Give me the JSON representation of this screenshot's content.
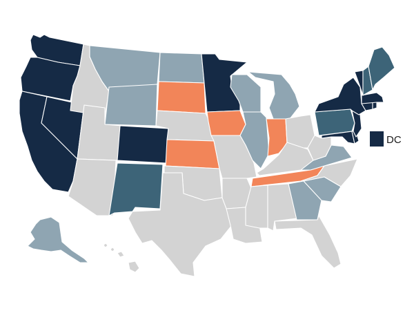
{
  "map": {
    "type": "us-state-choropleth",
    "colors": {
      "dark-navy": "#152a45",
      "teal": "#3d6478",
      "light-steel": "#8fa5b2",
      "orange": "#f28559",
      "light-gray": "#d3d3d3"
    },
    "dc_label": "DC",
    "dc_color": "dark-navy",
    "states": [
      {
        "code": "WA",
        "color": "dark-navy"
      },
      {
        "code": "OR",
        "color": "dark-navy"
      },
      {
        "code": "CA",
        "color": "dark-navy"
      },
      {
        "code": "NV",
        "color": "dark-navy"
      },
      {
        "code": "ID",
        "color": "light-gray"
      },
      {
        "code": "MT",
        "color": "light-steel"
      },
      {
        "code": "WY",
        "color": "light-steel"
      },
      {
        "code": "UT",
        "color": "light-gray"
      },
      {
        "code": "AZ",
        "color": "light-gray"
      },
      {
        "code": "CO",
        "color": "dark-navy"
      },
      {
        "code": "NM",
        "color": "teal"
      },
      {
        "code": "ND",
        "color": "light-steel"
      },
      {
        "code": "SD",
        "color": "orange"
      },
      {
        "code": "NE",
        "color": "light-gray"
      },
      {
        "code": "KS",
        "color": "orange"
      },
      {
        "code": "OK",
        "color": "light-gray"
      },
      {
        "code": "TX",
        "color": "light-gray"
      },
      {
        "code": "MN",
        "color": "dark-navy"
      },
      {
        "code": "IA",
        "color": "orange"
      },
      {
        "code": "MO",
        "color": "light-gray"
      },
      {
        "code": "AR",
        "color": "light-gray"
      },
      {
        "code": "LA",
        "color": "light-gray"
      },
      {
        "code": "WI",
        "color": "light-steel"
      },
      {
        "code": "IL",
        "color": "light-steel"
      },
      {
        "code": "MI",
        "color": "light-steel"
      },
      {
        "code": "IN",
        "color": "orange"
      },
      {
        "code": "OH",
        "color": "light-gray"
      },
      {
        "code": "KY",
        "color": "light-gray"
      },
      {
        "code": "TN",
        "color": "orange"
      },
      {
        "code": "MS",
        "color": "light-gray"
      },
      {
        "code": "AL",
        "color": "light-gray"
      },
      {
        "code": "GA",
        "color": "light-steel"
      },
      {
        "code": "FL",
        "color": "light-gray"
      },
      {
        "code": "SC",
        "color": "light-steel"
      },
      {
        "code": "NC",
        "color": "light-gray"
      },
      {
        "code": "VA",
        "color": "light-steel"
      },
      {
        "code": "WV",
        "color": "light-gray"
      },
      {
        "code": "MD",
        "color": "dark-navy"
      },
      {
        "code": "DE",
        "color": "dark-navy"
      },
      {
        "code": "PA",
        "color": "teal"
      },
      {
        "code": "NJ",
        "color": "dark-navy"
      },
      {
        "code": "NY",
        "color": "dark-navy"
      },
      {
        "code": "CT",
        "color": "dark-navy"
      },
      {
        "code": "RI",
        "color": "dark-navy"
      },
      {
        "code": "MA",
        "color": "dark-navy"
      },
      {
        "code": "VT",
        "color": "dark-navy"
      },
      {
        "code": "NH",
        "color": "teal"
      },
      {
        "code": "ME",
        "color": "teal"
      },
      {
        "code": "AK",
        "color": "light-steel"
      },
      {
        "code": "HI",
        "color": "light-gray"
      }
    ]
  }
}
